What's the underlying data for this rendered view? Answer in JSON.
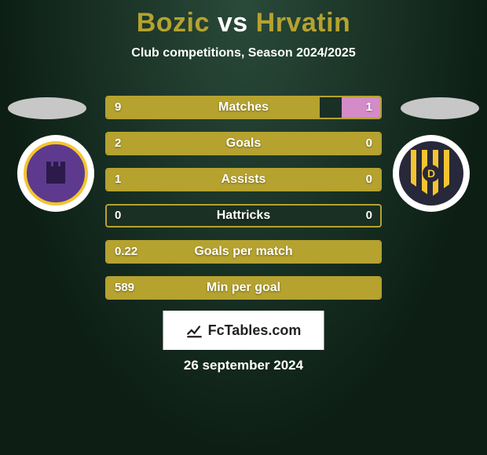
{
  "title": {
    "player1": "Bozic",
    "vs": "vs",
    "player2": "Hrvatin",
    "player1_color": "#b5a22f",
    "vs_color": "#ffffff",
    "player2_color": "#b5a22f"
  },
  "subtitle": "Club competitions, Season 2024/2025",
  "accent_color": "#b5a22f",
  "background_grad_inner": "#2a4a3a",
  "background_grad_outer": "#0d1f15",
  "club_left": {
    "name": "NK Maribor",
    "primary": "#5d3a8e",
    "secondary": "#f4c430"
  },
  "club_right": {
    "name": "NK Domzale",
    "primary": "#27283a",
    "secondary": "#f4c430",
    "letter": "D"
  },
  "bars": [
    {
      "label": "Matches",
      "left": "9",
      "right": "1",
      "left_pct": 78,
      "right_pct": 14,
      "right_color": "#d48bc8"
    },
    {
      "label": "Goals",
      "left": "2",
      "right": "0",
      "left_pct": 100,
      "right_pct": 0
    },
    {
      "label": "Assists",
      "left": "1",
      "right": "0",
      "left_pct": 100,
      "right_pct": 0
    },
    {
      "label": "Hattricks",
      "left": "0",
      "right": "0",
      "left_pct": 0,
      "right_pct": 0
    },
    {
      "label": "Goals per match",
      "left": "0.22",
      "right": "",
      "left_pct": 100,
      "right_pct": 0
    },
    {
      "label": "Min per goal",
      "left": "589",
      "right": "",
      "left_pct": 100,
      "right_pct": 0
    }
  ],
  "brand": "FcTables.com",
  "date": "26 september 2024"
}
